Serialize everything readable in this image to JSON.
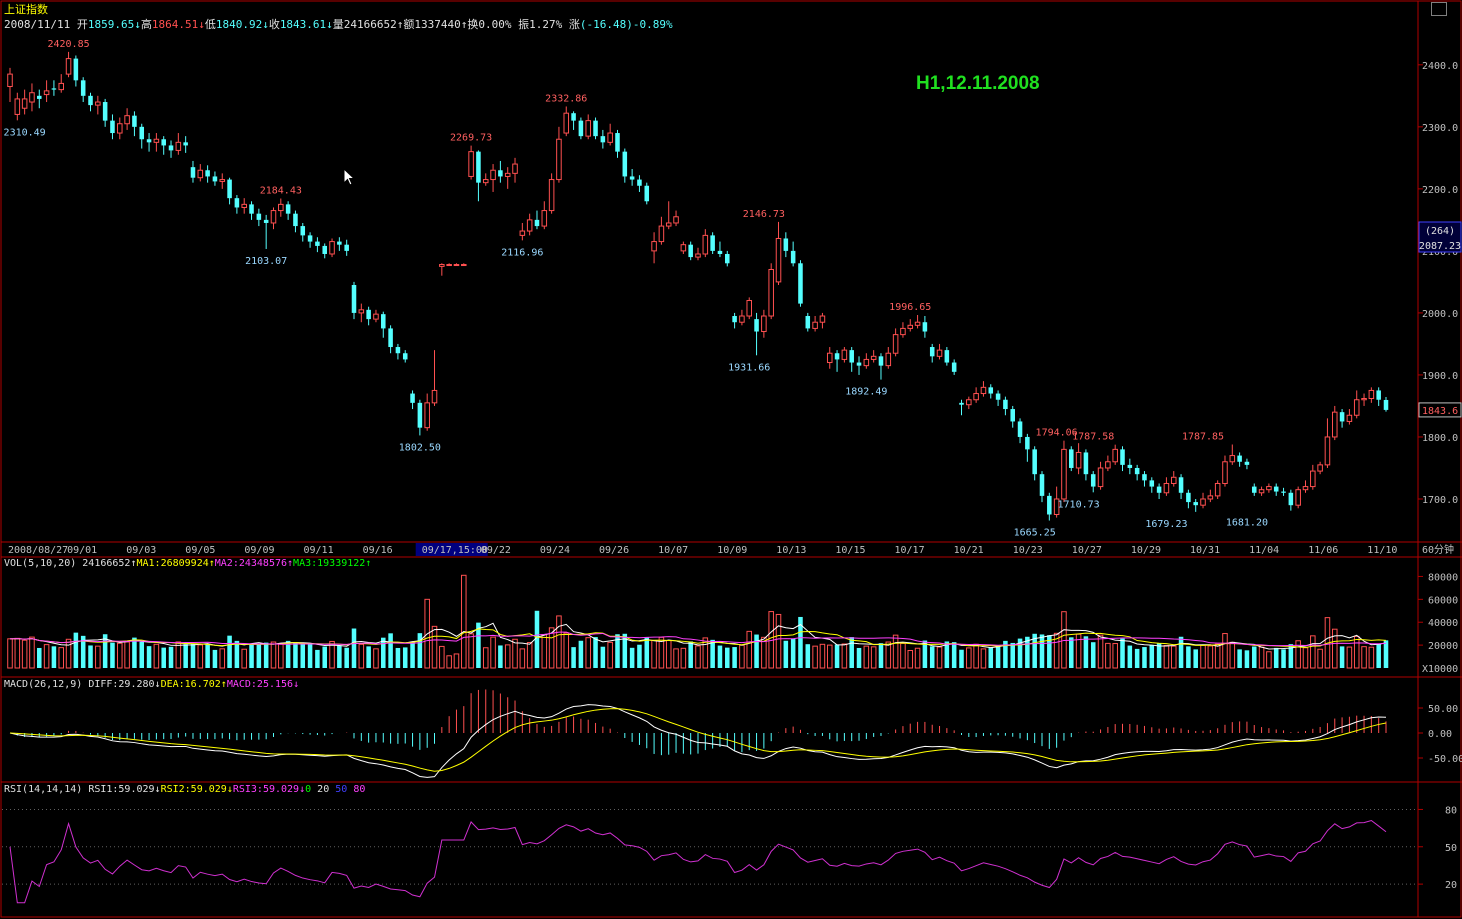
{
  "header": {
    "title": "上证指数",
    "date": "2008/11/11",
    "open_label": "开",
    "open": "1859.65",
    "high_label": "高",
    "high": "1864.51",
    "low_label": "低",
    "low": "1840.92",
    "close_label": "收",
    "close": "1843.61",
    "volume_label": "量",
    "volume": "24166652",
    "amount_label": "额",
    "amount": "1337440",
    "turnover_label": "换",
    "turnover": "0.00%",
    "amplitude_label": "振",
    "amplitude": "1.27%",
    "change_label": "涨",
    "change": "(-16.48)-0.89%"
  },
  "watermark": "H1,12.11.2008",
  "period_label": "60分钟",
  "colors": {
    "up": "#ff5050",
    "down": "#54ffff",
    "ma1": "#ffffff",
    "ma2": "#ff40ff",
    "ma3": "#00ff00",
    "diff": "#ffffff",
    "dea": "#ffff00",
    "rsi": "#d030d0",
    "axis": "#b00000"
  },
  "volume_panel": {
    "label": "VOL(5,10,20)",
    "value": "24166652",
    "ma1": "MA1:26809924",
    "ma2": "MA2:24348576",
    "ma3": "MA3:19339122",
    "unit": "X10000"
  },
  "macd_panel": {
    "label": "MACD(26,12,9)",
    "diff": "DIFF:29.280",
    "dea": "DEA:16.702",
    "macd": "MACD:25.156"
  },
  "rsi_panel": {
    "label": "RSI(14,14,14)",
    "rsi1": "RSI1:59.029",
    "rsi2": "RSI2:59.029",
    "rsi3": "RSI3:59.029",
    "l0": "0",
    "l20": "20",
    "l50": "50",
    "l80": "80"
  },
  "chart_data": {
    "type": "candlestick",
    "price_axis": {
      "ticks": [
        1700,
        1800,
        1900,
        2000,
        2100,
        2200,
        2300,
        2400
      ],
      "labels": [
        "1700.0",
        "1800.0",
        "1900.0",
        "2000.0",
        "2100.0",
        "2200.0",
        "2300.0",
        "2400.0"
      ],
      "ylim": [
        1650,
        2440
      ]
    },
    "date_labels": [
      "2008/08/27",
      "09/01",
      "09/03",
      "09/05",
      "09/09",
      "09/11",
      "09/16",
      "09/17,15:00",
      "09/22",
      "09/24",
      "09/26",
      "10/07",
      "10/09",
      "10/13",
      "10/15",
      "10/17",
      "10/21",
      "10/23",
      "10/27",
      "10/29",
      "10/31",
      "11/04",
      "11/06",
      "11/10"
    ],
    "crosshair_price": "2087.23",
    "crosshair_count": "(264)",
    "last_price": "1843.6",
    "annotations": [
      {
        "text": "2420.85",
        "i": 8,
        "price": 2420.85,
        "kind": "high"
      },
      {
        "text": "2310.49",
        "i": 2,
        "price": 2310.49,
        "kind": "low"
      },
      {
        "text": "2184.43",
        "i": 37,
        "price": 2184.43,
        "kind": "high"
      },
      {
        "text": "2103.07",
        "i": 35,
        "price": 2103.07,
        "kind": "low"
      },
      {
        "text": "1802.50",
        "i": 56,
        "price": 1802.5,
        "kind": "low"
      },
      {
        "text": "2269.73",
        "i": 63,
        "price": 2269.73,
        "kind": "high"
      },
      {
        "text": "2116.96",
        "i": 70,
        "price": 2116.96,
        "kind": "low"
      },
      {
        "text": "2332.86",
        "i": 76,
        "price": 2332.86,
        "kind": "high"
      },
      {
        "text": "2146.73",
        "i": 103,
        "price": 2146.73,
        "kind": "high"
      },
      {
        "text": "1931.66",
        "i": 101,
        "price": 1931.66,
        "kind": "low"
      },
      {
        "text": "1892.49",
        "i": 117,
        "price": 1892.49,
        "kind": "low"
      },
      {
        "text": "1996.65",
        "i": 123,
        "price": 1996.65,
        "kind": "high"
      },
      {
        "text": "1665.25",
        "i": 140,
        "price": 1665.25,
        "kind": "low"
      },
      {
        "text": "1794.06",
        "i": 143,
        "price": 1794.06,
        "kind": "high"
      },
      {
        "text": "1787.58",
        "i": 148,
        "price": 1787.58,
        "kind": "high"
      },
      {
        "text": "1710.73",
        "i": 146,
        "price": 1710.73,
        "kind": "low"
      },
      {
        "text": "1679.23",
        "i": 158,
        "price": 1679.23,
        "kind": "low"
      },
      {
        "text": "1787.85",
        "i": 163,
        "price": 1787.85,
        "kind": "high"
      },
      {
        "text": "1681.20",
        "i": 169,
        "price": 1681.2,
        "kind": "low"
      }
    ],
    "candles": [
      [
        2365,
        2385,
        2395,
        2340
      ],
      [
        2320,
        2345,
        2355,
        2310.49
      ],
      [
        2330,
        2345,
        2360,
        2320
      ],
      [
        2340,
        2355,
        2370,
        2325
      ],
      [
        2350,
        2345,
        2360,
        2330
      ],
      [
        2352,
        2358,
        2375,
        2340
      ],
      [
        2362,
        2360,
        2375,
        2350
      ],
      [
        2360,
        2370,
        2385,
        2355
      ],
      [
        2385,
        2410,
        2420.85,
        2380
      ],
      [
        2410,
        2375,
        2415,
        2365
      ],
      [
        2375,
        2350,
        2380,
        2340
      ],
      [
        2350,
        2335,
        2355,
        2325
      ],
      [
        2335,
        2340,
        2350,
        2320
      ],
      [
        2340,
        2310,
        2345,
        2300
      ],
      [
        2310,
        2290,
        2320,
        2280
      ],
      [
        2290,
        2305,
        2315,
        2280
      ],
      [
        2305,
        2318,
        2330,
        2295
      ],
      [
        2318,
        2300,
        2325,
        2285
      ],
      [
        2300,
        2280,
        2305,
        2265
      ],
      [
        2280,
        2275,
        2290,
        2260
      ],
      [
        2275,
        2280,
        2290,
        2260
      ],
      [
        2280,
        2270,
        2285,
        2255
      ],
      [
        2270,
        2262,
        2278,
        2250
      ],
      [
        2262,
        2275,
        2290,
        2255
      ],
      [
        2275,
        2270,
        2285,
        2258
      ],
      [
        2235,
        2218,
        2245,
        2210
      ],
      [
        2218,
        2230,
        2240,
        2212
      ],
      [
        2230,
        2220,
        2238,
        2210
      ],
      [
        2220,
        2212,
        2228,
        2205
      ],
      [
        2212,
        2215,
        2225,
        2200
      ],
      [
        2215,
        2185,
        2218,
        2175
      ],
      [
        2185,
        2170,
        2190,
        2160
      ],
      [
        2170,
        2175,
        2185,
        2160
      ],
      [
        2175,
        2160,
        2180,
        2150
      ],
      [
        2160,
        2150,
        2168,
        2140
      ],
      [
        2150,
        2145,
        2158,
        2103.07
      ],
      [
        2145,
        2165,
        2170,
        2135
      ],
      [
        2165,
        2175,
        2184.43,
        2155
      ],
      [
        2175,
        2160,
        2180,
        2150
      ],
      [
        2160,
        2140,
        2165,
        2130
      ],
      [
        2140,
        2125,
        2145,
        2115
      ],
      [
        2125,
        2115,
        2130,
        2105
      ],
      [
        2115,
        2108,
        2122,
        2098
      ],
      [
        2108,
        2095,
        2112,
        2088
      ],
      [
        2095,
        2115,
        2120,
        2090
      ],
      [
        2115,
        2110,
        2122,
        2100
      ],
      [
        2110,
        2100,
        2118,
        2092
      ],
      [
        2045,
        2000,
        2050,
        1990
      ],
      [
        2000,
        2005,
        2015,
        1985
      ],
      [
        2005,
        1990,
        2010,
        1980
      ],
      [
        1990,
        1998,
        2005,
        1985
      ],
      [
        1998,
        1975,
        2002,
        1960
      ],
      [
        1975,
        1945,
        1980,
        1935
      ],
      [
        1945,
        1935,
        1950,
        1925
      ],
      [
        1935,
        1925,
        1940,
        1920
      ],
      [
        1870,
        1855,
        1875,
        1845
      ],
      [
        1855,
        1815,
        1860,
        1802.5
      ],
      [
        1815,
        1855,
        1870,
        1810
      ],
      [
        1855,
        1875,
        1940,
        1850
      ],
      [
        2075,
        2078,
        2080,
        2060
      ],
      [
        2078,
        2078,
        2080,
        2076
      ],
      [
        2078,
        2078,
        2080,
        2076
      ],
      [
        2078,
        2078,
        2080,
        2076
      ],
      [
        2220,
        2260,
        2269.73,
        2215
      ],
      [
        2260,
        2210,
        2262,
        2180
      ],
      [
        2210,
        2215,
        2225,
        2205
      ],
      [
        2215,
        2230,
        2240,
        2195
      ],
      [
        2230,
        2220,
        2245,
        2210
      ],
      [
        2220,
        2225,
        2235,
        2200
      ],
      [
        2225,
        2240,
        2250,
        2210
      ],
      [
        2125,
        2132,
        2145,
        2116.96
      ],
      [
        2132,
        2150,
        2160,
        2125
      ],
      [
        2150,
        2140,
        2165,
        2135
      ],
      [
        2140,
        2165,
        2180,
        2135
      ],
      [
        2165,
        2215,
        2225,
        2160
      ],
      [
        2215,
        2280,
        2300,
        2210
      ],
      [
        2290,
        2322,
        2332.86,
        2285
      ],
      [
        2322,
        2310,
        2325,
        2295
      ],
      [
        2310,
        2285,
        2315,
        2280
      ],
      [
        2285,
        2310,
        2320,
        2280
      ],
      [
        2310,
        2285,
        2315,
        2280
      ],
      [
        2285,
        2275,
        2295,
        2265
      ],
      [
        2275,
        2290,
        2305,
        2270
      ],
      [
        2290,
        2260,
        2295,
        2250
      ],
      [
        2260,
        2220,
        2265,
        2210
      ],
      [
        2220,
        2215,
        2232,
        2205
      ],
      [
        2215,
        2205,
        2222,
        2195
      ],
      [
        2205,
        2180,
        2210,
        2175
      ],
      [
        2100,
        2115,
        2130,
        2080
      ],
      [
        2115,
        2140,
        2155,
        2110
      ],
      [
        2140,
        2145,
        2180,
        2135
      ],
      [
        2145,
        2155,
        2165,
        2140
      ],
      [
        2100,
        2110,
        2115,
        2095
      ],
      [
        2110,
        2090,
        2115,
        2085
      ],
      [
        2090,
        2095,
        2105,
        2085
      ],
      [
        2095,
        2125,
        2135,
        2090
      ],
      [
        2125,
        2100,
        2130,
        2095
      ],
      [
        2100,
        2095,
        2115,
        2090
      ],
      [
        2095,
        2080,
        2100,
        2075
      ],
      [
        1995,
        1985,
        2000,
        1975
      ],
      [
        1985,
        1995,
        2005,
        1980
      ],
      [
        1995,
        2020,
        2025,
        1990
      ],
      [
        1990,
        1970,
        2000,
        1931.66
      ],
      [
        1970,
        1995,
        2005,
        1960
      ],
      [
        1995,
        2070,
        2080,
        1990
      ],
      [
        2050,
        2120,
        2146.73,
        2045
      ],
      [
        2120,
        2100,
        2130,
        2090
      ],
      [
        2100,
        2080,
        2115,
        2075
      ],
      [
        2080,
        2015,
        2085,
        2010
      ],
      [
        1995,
        1975,
        2000,
        1970
      ],
      [
        1975,
        1985,
        1995,
        1970
      ],
      [
        1985,
        1995,
        2000,
        1975
      ],
      [
        1920,
        1935,
        1945,
        1910
      ],
      [
        1935,
        1925,
        1940,
        1905
      ],
      [
        1925,
        1940,
        1945,
        1920
      ],
      [
        1940,
        1920,
        1945,
        1905
      ],
      [
        1920,
        1915,
        1930,
        1900
      ],
      [
        1915,
        1925,
        1935,
        1910
      ],
      [
        1925,
        1930,
        1940,
        1920
      ],
      [
        1930,
        1915,
        1935,
        1892.49
      ],
      [
        1915,
        1935,
        1945,
        1910
      ],
      [
        1935,
        1965,
        1975,
        1930
      ],
      [
        1965,
        1975,
        1985,
        1960
      ],
      [
        1975,
        1980,
        1990,
        1970
      ],
      [
        1980,
        1985,
        1996.65,
        1975
      ],
      [
        1985,
        1970,
        1995,
        1960
      ],
      [
        1945,
        1930,
        1950,
        1920
      ],
      [
        1930,
        1940,
        1950,
        1925
      ],
      [
        1940,
        1920,
        1945,
        1915
      ],
      [
        1920,
        1905,
        1925,
        1900
      ],
      [
        1855,
        1852,
        1860,
        1835
      ],
      [
        1852,
        1860,
        1865,
        1845
      ],
      [
        1860,
        1870,
        1880,
        1855
      ],
      [
        1870,
        1880,
        1890,
        1865
      ],
      [
        1880,
        1870,
        1885,
        1862
      ],
      [
        1870,
        1860,
        1875,
        1850
      ],
      [
        1860,
        1845,
        1865,
        1835
      ],
      [
        1845,
        1825,
        1850,
        1815
      ],
      [
        1825,
        1800,
        1830,
        1790
      ],
      [
        1800,
        1780,
        1805,
        1760
      ],
      [
        1780,
        1740,
        1785,
        1730
      ],
      [
        1740,
        1705,
        1745,
        1695
      ],
      [
        1705,
        1675,
        1710,
        1665.25
      ],
      [
        1675,
        1700,
        1720,
        1670
      ],
      [
        1700,
        1780,
        1794.06,
        1695
      ],
      [
        1780,
        1750,
        1785,
        1745
      ],
      [
        1750,
        1775,
        1790,
        1740
      ],
      [
        1775,
        1740,
        1780,
        1730
      ],
      [
        1740,
        1720,
        1745,
        1710.73
      ],
      [
        1720,
        1750,
        1760,
        1715
      ],
      [
        1750,
        1760,
        1770,
        1745
      ],
      [
        1760,
        1780,
        1787.58,
        1755
      ],
      [
        1780,
        1755,
        1785,
        1745
      ],
      [
        1755,
        1750,
        1765,
        1740
      ],
      [
        1750,
        1740,
        1755,
        1730
      ],
      [
        1740,
        1730,
        1745,
        1720
      ],
      [
        1730,
        1720,
        1735,
        1710
      ],
      [
        1720,
        1710,
        1725,
        1700
      ],
      [
        1710,
        1725,
        1735,
        1705
      ],
      [
        1725,
        1735,
        1745,
        1720
      ],
      [
        1735,
        1710,
        1740,
        1700
      ],
      [
        1710,
        1695,
        1715,
        1685
      ],
      [
        1695,
        1690,
        1700,
        1679.23
      ],
      [
        1690,
        1700,
        1710,
        1685
      ],
      [
        1700,
        1705,
        1715,
        1695
      ],
      [
        1705,
        1725,
        1730,
        1700
      ],
      [
        1725,
        1760,
        1770,
        1720
      ],
      [
        1760,
        1770,
        1787.85,
        1755
      ],
      [
        1770,
        1760,
        1775,
        1752
      ],
      [
        1760,
        1755,
        1765,
        1748
      ],
      [
        1720,
        1710,
        1725,
        1705
      ],
      [
        1710,
        1715,
        1720,
        1705
      ],
      [
        1715,
        1720,
        1725,
        1710
      ],
      [
        1720,
        1712,
        1725,
        1705
      ],
      [
        1712,
        1710,
        1718,
        1705
      ],
      [
        1710,
        1690,
        1715,
        1681.2
      ],
      [
        1690,
        1715,
        1720,
        1685
      ],
      [
        1715,
        1720,
        1730,
        1710
      ],
      [
        1720,
        1745,
        1755,
        1715
      ],
      [
        1745,
        1755,
        1760,
        1740
      ],
      [
        1755,
        1800,
        1830,
        1750
      ],
      [
        1800,
        1840,
        1850,
        1795
      ],
      [
        1840,
        1825,
        1845,
        1815
      ],
      [
        1825,
        1835,
        1845,
        1820
      ],
      [
        1835,
        1860,
        1875,
        1830
      ],
      [
        1860,
        1862,
        1870,
        1850
      ],
      [
        1862,
        1875,
        1880,
        1855
      ],
      [
        1875,
        1860,
        1880,
        1850
      ],
      [
        1859.65,
        1843.61,
        1864.51,
        1840.92
      ]
    ]
  }
}
